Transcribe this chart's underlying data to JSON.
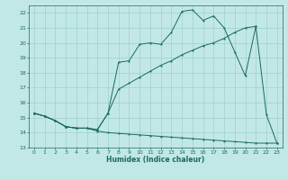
{
  "xlabel": "Humidex (Indice chaleur)",
  "bg_color": "#c2e8e5",
  "grid_color": "#9dd0cc",
  "line_color": "#1a6b5a",
  "xlim": [
    -0.5,
    23.5
  ],
  "ylim": [
    13,
    22.5
  ],
  "xticks": [
    0,
    1,
    2,
    3,
    4,
    5,
    6,
    7,
    8,
    9,
    10,
    11,
    12,
    13,
    14,
    15,
    16,
    17,
    18,
    19,
    20,
    21,
    22,
    23
  ],
  "yticks": [
    13,
    14,
    15,
    16,
    17,
    18,
    19,
    20,
    21,
    22
  ],
  "line1_y": [
    15.3,
    15.1,
    14.8,
    14.4,
    14.3,
    14.3,
    14.1,
    14.0,
    13.95,
    13.9,
    13.85,
    13.8,
    13.75,
    13.7,
    13.65,
    13.6,
    13.55,
    13.5,
    13.45,
    13.4,
    13.35,
    13.3,
    13.3,
    13.3
  ],
  "line2_y": [
    15.3,
    15.1,
    14.8,
    14.4,
    14.3,
    14.3,
    14.2,
    15.3,
    16.9,
    17.3,
    17.7,
    18.1,
    18.5,
    18.8,
    19.2,
    19.5,
    19.8,
    20.0,
    20.3,
    20.7,
    21.0,
    21.1,
    null,
    null
  ],
  "line3_y": [
    15.3,
    15.1,
    14.8,
    14.4,
    14.3,
    14.3,
    14.2,
    15.3,
    18.7,
    18.8,
    19.9,
    20.0,
    19.9,
    20.7,
    22.1,
    22.2,
    21.5,
    21.8,
    21.0,
    19.4,
    17.8,
    21.1,
    15.2,
    13.3
  ]
}
